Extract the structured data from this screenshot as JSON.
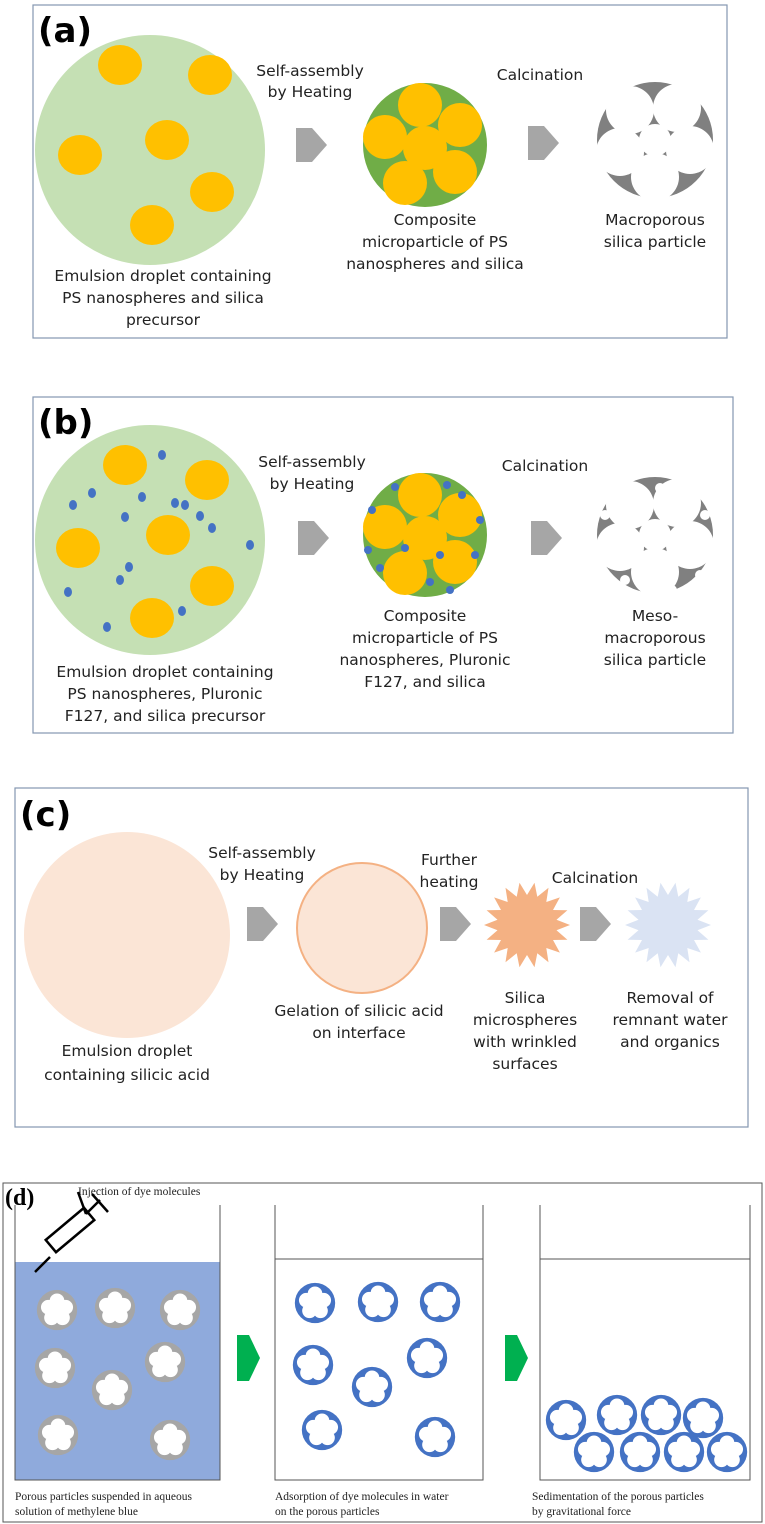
{
  "panels": [
    {
      "label": "(a)",
      "arrow_labels": [
        [
          "Self-assembly",
          "by Heating"
        ],
        [
          "Calcination"
        ]
      ],
      "captions": [
        [
          "Emulsion droplet containing",
          "PS nanospheres and silica",
          "precursor"
        ],
        [
          "Composite",
          "microparticle of PS",
          "nanospheres and silica"
        ],
        [
          "Macroporous",
          "silica particle"
        ]
      ]
    },
    {
      "label": "(b)",
      "arrow_labels": [
        [
          "Self-assembly",
          "by Heating"
        ],
        [
          "Calcination"
        ]
      ],
      "captions": [
        [
          "Emulsion droplet containing",
          "PS nanospheres, Pluronic",
          "F127, and silica precursor"
        ],
        [
          "Composite",
          "microparticle of PS",
          "nanospheres, Pluronic",
          "F127, and silica"
        ],
        [
          "Meso-",
          "macroporous",
          "silica particle"
        ]
      ]
    },
    {
      "label": "(c)",
      "arrow_labels": [
        [
          "Self-assembly",
          "by Heating"
        ],
        [
          "Further",
          "heating"
        ],
        [
          "Calcination"
        ]
      ],
      "captions": [
        [
          "Emulsion droplet",
          "containing silicic acid"
        ],
        [
          "Gelation of silicic acid",
          "on interface"
        ],
        [
          "Silica",
          "microspheres",
          "with wrinkled",
          "surfaces"
        ],
        [
          "Removal of",
          "remnant water",
          "and organics"
        ]
      ]
    },
    {
      "label": "(d)",
      "note": "Injection of dye molecules",
      "captions": [
        [
          "Porous particles suspended in aqueous",
          "solution of methylene blue"
        ],
        [
          "Adsorption of dye molecules in water",
          "on the porous particles"
        ],
        [
          "Sedimentation of the porous particles",
          "by gravitational force"
        ]
      ]
    }
  ]
}
